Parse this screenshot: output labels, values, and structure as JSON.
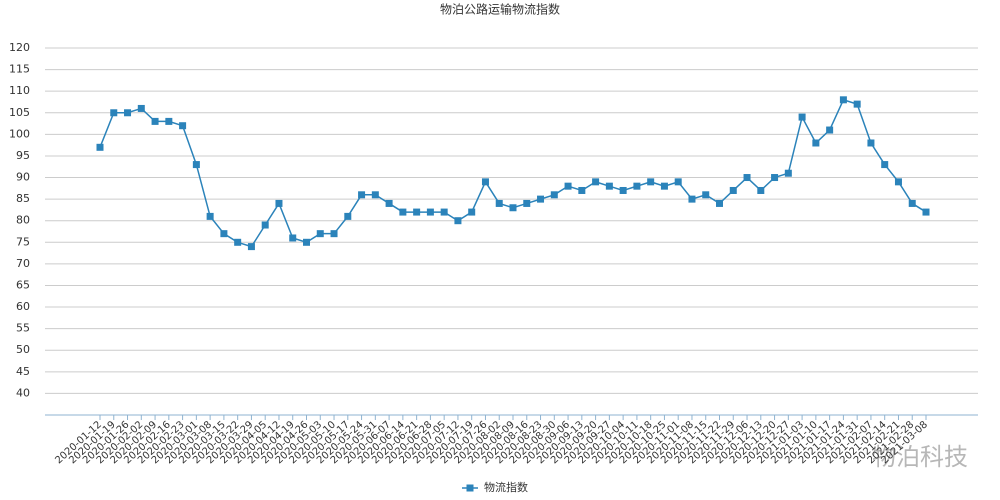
{
  "chart_data": {
    "type": "line",
    "title": "物泊公路运输物流指数",
    "categories": [
      "2020-01-12",
      "2020-01-19",
      "2020-01-26",
      "2020-02-02",
      "2020-02-09",
      "2020-02-16",
      "2020-02-23",
      "2020-03-01",
      "2020-03-08",
      "2020-03-15",
      "2020-03-22",
      "2020-03-29",
      "2020-04-05",
      "2020-04-12",
      "2020-04-19",
      "2020-04-26",
      "2020-05-03",
      "2020-05-10",
      "2020-05-17",
      "2020-05-24",
      "2020-05-31",
      "2020-06-07",
      "2020-06-14",
      "2020-06-21",
      "2020-06-28",
      "2020-07-05",
      "2020-07-12",
      "2020-07-19",
      "2020-07-26",
      "2020-08-02",
      "2020-08-09",
      "2020-08-16",
      "2020-08-23",
      "2020-08-30",
      "2020-09-06",
      "2020-09-13",
      "2020-09-20",
      "2020-09-27",
      "2020-10-04",
      "2020-10-11",
      "2020-10-18",
      "2020-10-25",
      "2020-11-01",
      "2020-11-08",
      "2020-11-15",
      "2020-11-22",
      "2020-11-29",
      "2020-12-06",
      "2020-12-13",
      "2020-12-20",
      "2020-12-27",
      "2021-01-03",
      "2021-01-10",
      "2021-01-17",
      "2021-01-24",
      "2021-01-31",
      "2021-02-07",
      "2021-02-14",
      "2021-02-21",
      "2021-02-28",
      "2021-03-08"
    ],
    "series": [
      {
        "name": "物流指数",
        "color": "#2b83ba",
        "values": [
          97,
          105,
          105,
          106,
          103,
          103,
          102,
          93,
          81,
          77,
          75,
          74,
          79,
          84,
          76,
          75,
          77,
          77,
          81,
          86,
          86,
          84,
          82,
          82,
          82,
          82,
          80,
          82,
          89,
          84,
          83,
          84,
          85,
          86,
          88,
          87,
          89,
          88,
          87,
          88,
          89,
          88,
          89,
          85,
          86,
          84,
          87,
          90,
          87,
          90,
          91,
          104,
          98,
          101,
          108,
          107,
          98,
          93,
          89,
          84,
          82
        ]
      }
    ],
    "ylim": [
      35,
      120
    ],
    "yticks": [
      40,
      45,
      50,
      55,
      60,
      65,
      70,
      75,
      80,
      85,
      90,
      95,
      100,
      105,
      110,
      115,
      120
    ],
    "grid": true,
    "legend": "bottom",
    "watermark": "物泊科技"
  }
}
